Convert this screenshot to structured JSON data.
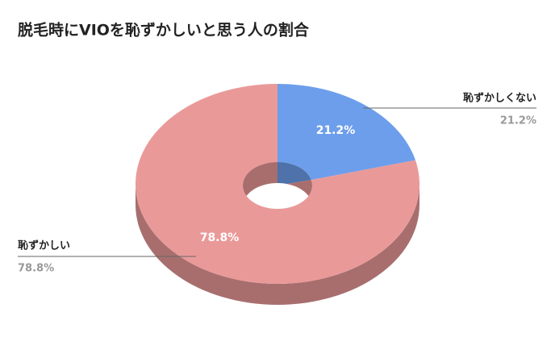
{
  "chart_data": {
    "type": "donut3d",
    "title": "脱毛時にVIOを恥ずかしいと思う人の割合",
    "categories": [
      "恥ずかしくない",
      "恥ずかしい"
    ],
    "values": [
      21.2,
      78.8
    ],
    "value_labels": [
      "21.2%",
      "78.8%"
    ],
    "colors": [
      "#6d9eeb",
      "#ea9999"
    ]
  }
}
